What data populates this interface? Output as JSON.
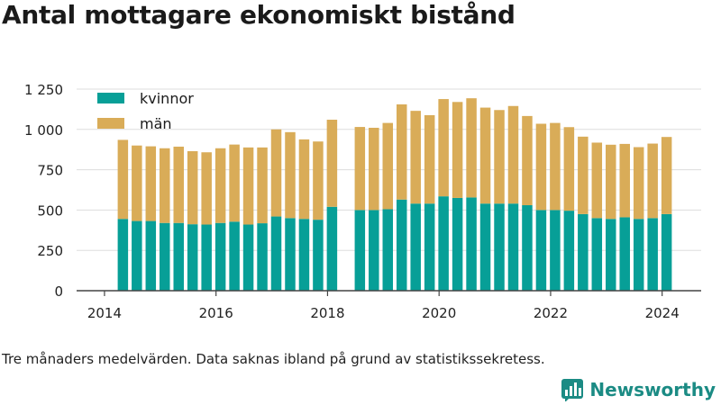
{
  "title": "Antal mottagare ekonomiskt bistånd",
  "footnote": "Tre månaders medelvärden. Data saknas ibland på grund av statistikssekretess.",
  "brand": {
    "name": "Newsworthy",
    "icon": "bar-chart-logo-icon"
  },
  "colors": {
    "kvinnor": "#079f97",
    "man": "#d9ac58",
    "grid": "#dddddd",
    "axis": "#444444"
  },
  "chart_data": {
    "type": "bar",
    "stacked": true,
    "x_ticks": [
      2014,
      2016,
      2018,
      2020,
      2022,
      2024
    ],
    "y_ticks": [
      0,
      250,
      500,
      750,
      1000,
      1250
    ],
    "y_tick_labels": [
      "0",
      "250",
      "500",
      "750",
      "1 000",
      "1 250"
    ],
    "ylim": [
      0,
      1300
    ],
    "xlim": [
      2013.5,
      2024.7
    ],
    "grid": true,
    "legend_position": "top-left",
    "x": [
      2014.33,
      2014.58,
      2014.83,
      2015.08,
      2015.33,
      2015.58,
      2015.83,
      2016.08,
      2016.33,
      2016.58,
      2016.83,
      2017.08,
      2017.33,
      2017.58,
      2017.83,
      2018.08,
      2018.58,
      2018.83,
      2019.08,
      2019.33,
      2019.58,
      2019.83,
      2020.08,
      2020.33,
      2020.58,
      2020.83,
      2021.08,
      2021.33,
      2021.58,
      2021.83,
      2022.08,
      2022.33,
      2022.58,
      2022.83,
      2023.08,
      2023.33,
      2023.58,
      2023.83,
      2024.08
    ],
    "series": [
      {
        "name": "kvinnor",
        "values": [
          445,
          432,
          432,
          420,
          420,
          412,
          410,
          420,
          428,
          410,
          418,
          460,
          450,
          445,
          440,
          520,
          500,
          500,
          505,
          565,
          540,
          540,
          585,
          575,
          578,
          540,
          540,
          540,
          530,
          500,
          500,
          496,
          475,
          450,
          445,
          455,
          445,
          450,
          475
        ]
      },
      {
        "name": "män",
        "values": [
          490,
          468,
          463,
          463,
          473,
          453,
          448,
          463,
          478,
          478,
          470,
          540,
          533,
          493,
          485,
          540,
          515,
          510,
          535,
          590,
          575,
          548,
          603,
          595,
          615,
          595,
          580,
          605,
          553,
          535,
          540,
          518,
          480,
          468,
          460,
          455,
          445,
          462,
          478
        ]
      }
    ]
  }
}
